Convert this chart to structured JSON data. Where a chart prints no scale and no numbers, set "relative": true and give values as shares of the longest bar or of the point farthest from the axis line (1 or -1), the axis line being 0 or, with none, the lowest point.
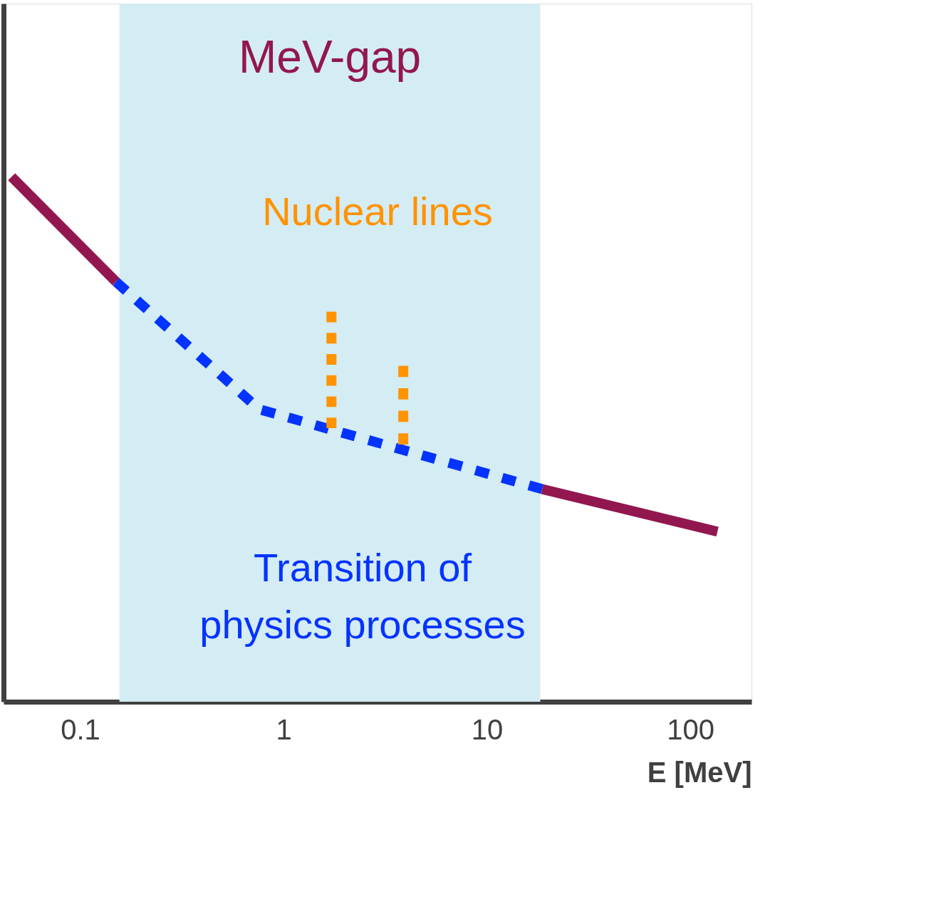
{
  "chart_data": {
    "type": "line",
    "relative": true,
    "xlabel": "E  [MeV]",
    "log": "x",
    "xlim": [
      0.042,
      200
    ],
    "xticks": [
      0.1,
      1,
      10,
      100
    ],
    "tick_labels": "x",
    "grid": false,
    "marker": "none",
    "series": [
      {
        "color": "#93174f",
        "line_style": "solid",
        "x": [
          0.046,
          0.15
        ],
        "values": [
          1,
          0.8
        ]
      },
      {
        "color": "#0433ff",
        "line_style": "dashed",
        "x": [
          0.15,
          0.76,
          18.7
        ],
        "values": [
          0.8,
          0.557,
          0.405
        ]
      },
      {
        "color": "#93174f",
        "line_style": "solid",
        "x": [
          18.7,
          136
        ],
        "values": [
          0.405,
          0.324
        ]
      },
      {
        "color": "#ff9300",
        "line_style": "dotted",
        "x": [
          1.72,
          1.72
        ],
        "values": [
          0.521,
          0.743
        ]
      },
      {
        "color": "#ff9300",
        "line_style": "dotted",
        "x": [
          3.88,
          3.88
        ],
        "values": [
          0.49,
          0.64
        ]
      }
    ],
    "bands": [
      {
        "axis": "x",
        "from": 0.156,
        "to": 18.3,
        "label": "MeV-gap",
        "color": "#d4ecf4"
      }
    ],
    "annotations": [
      "Nuclear lines",
      "Transition of\nphysics processes"
    ]
  }
}
